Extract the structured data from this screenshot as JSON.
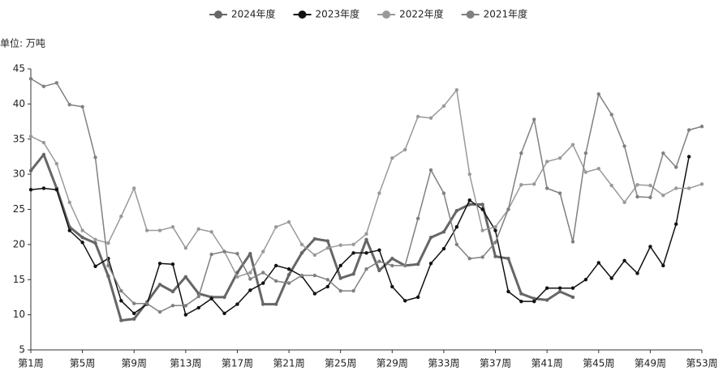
{
  "chart_data": {
    "type": "line",
    "unit_label": "单位: 万吨",
    "categories": [
      "第1周",
      null,
      null,
      null,
      "第5周",
      null,
      null,
      null,
      "第9周",
      null,
      null,
      null,
      "第13周",
      null,
      null,
      null,
      "第17周",
      null,
      null,
      null,
      "第21周",
      null,
      null,
      null,
      "第25周",
      null,
      null,
      null,
      "第29周",
      null,
      null,
      null,
      "第33周",
      null,
      null,
      null,
      "第37周",
      null,
      null,
      null,
      "第41周",
      null,
      null,
      null,
      "第45周",
      null,
      null,
      null,
      "第49周",
      null,
      null,
      null,
      "第53周"
    ],
    "ylim": [
      5,
      45
    ],
    "yticks": [
      5,
      10,
      15,
      20,
      25,
      30,
      35,
      40,
      45
    ],
    "legend": "top",
    "series": [
      {
        "name": "2024年度",
        "color": "#666666",
        "values": [
          30.5,
          32.8,
          28,
          22.5,
          21,
          20.2,
          15.5,
          9.2,
          9.4,
          11.8,
          14.3,
          13.3,
          15.4,
          13,
          12.5,
          12.5,
          16,
          18.7,
          11.5,
          11.5,
          15.7,
          18.8,
          20.8,
          20.5,
          15.2,
          15.8,
          20.7,
          16.3,
          18,
          17,
          17.2,
          21,
          21.8,
          24.8,
          25.7,
          25.7,
          18.3,
          18,
          13,
          12.3,
          12.1,
          13.3,
          12.5,
          null,
          null,
          null,
          null,
          null,
          null,
          null,
          null,
          null,
          null
        ]
      },
      {
        "name": "2023年度",
        "color": "#111111",
        "values": [
          27.8,
          28,
          27.8,
          22,
          20.3,
          16.9,
          18,
          12,
          10.2,
          11.5,
          17.3,
          17.2,
          10,
          11,
          12.3,
          10.2,
          11.5,
          13.5,
          14.5,
          17,
          16.5,
          15.5,
          13,
          14,
          17,
          18.8,
          18.8,
          19.2,
          14,
          12,
          12.5,
          17.3,
          19.4,
          22.5,
          26.3,
          25,
          22,
          13.3,
          11.9,
          11.9,
          13.8,
          13.8,
          13.8,
          15,
          17.4,
          15.2,
          17.7,
          15.9,
          19.7,
          17,
          22.9,
          32.5,
          null
        ]
      },
      {
        "name": "2022年度",
        "color": "#999999",
        "values": [
          35.4,
          34.5,
          31.5,
          26,
          22,
          20.7,
          20.2,
          24,
          28,
          22,
          22,
          22.5,
          19.5,
          22.2,
          21.8,
          19,
          15.4,
          16,
          19,
          22.5,
          23.2,
          20,
          18.5,
          19.5,
          19.9,
          20,
          21.5,
          27.3,
          32.3,
          33.5,
          38.2,
          38,
          39.7,
          42,
          30,
          22,
          22.5,
          25,
          28.5,
          28.6,
          31.8,
          32.3,
          34.2,
          30.3,
          30.8,
          28.4,
          26,
          28.5,
          28.4,
          27,
          28,
          28,
          28.6
        ]
      },
      {
        "name": "2021年度",
        "color": "#808080",
        "values": [
          43.6,
          42.5,
          43,
          39.9,
          39.6,
          32.4,
          17,
          13.4,
          11.6,
          11.6,
          10.4,
          11.3,
          11.3,
          12.6,
          18.6,
          19,
          18.7,
          15.1,
          16,
          14.8,
          14.5,
          15.6,
          15.6,
          15,
          13.4,
          13.4,
          16.5,
          17.6,
          17,
          17,
          23.7,
          30.6,
          27.3,
          20,
          18,
          18.2,
          20.3,
          25,
          33,
          37.8,
          28,
          27.3,
          20.4,
          33,
          41.4,
          38.5,
          34,
          26.8,
          26.7,
          33,
          31,
          36.3,
          36.8
        ]
      }
    ]
  }
}
